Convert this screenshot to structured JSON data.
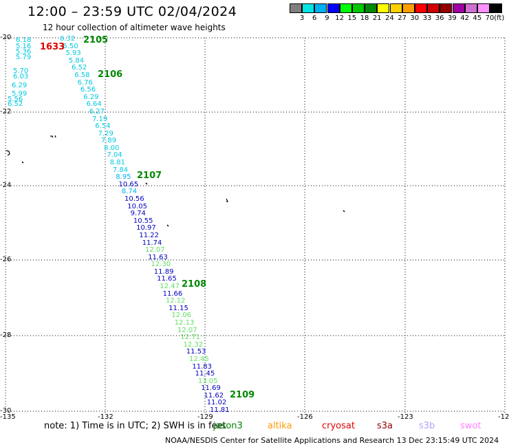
{
  "header": {
    "title": "12:00 – 23:59 UTC 02/04/2024",
    "subtitle": "12 hour collection of altimeter wave heights"
  },
  "legend": {
    "colors": [
      "#7f7f7f",
      "#00e5e5",
      "#00b0f0",
      "#0000ff",
      "#00ff00",
      "#00c800",
      "#008800",
      "#ffff00",
      "#ffd000",
      "#ffa000",
      "#ff0000",
      "#d00000",
      "#900000",
      "#a000a0",
      "#d070d0",
      "#ff90ff",
      "#000000"
    ],
    "ticks": [
      "3",
      "6",
      "9",
      "12",
      "15",
      "18",
      "21",
      "24",
      "27",
      "30",
      "33",
      "36",
      "39",
      "42",
      "45",
      "70"
    ],
    "unit": "(ft)"
  },
  "map": {
    "lat_ticks": [
      "-20",
      "-22",
      "-24",
      "-26",
      "-28",
      "-30"
    ],
    "lon_ticks": [
      "-135",
      "-132",
      "-129",
      "-126",
      "-123",
      "-12"
    ]
  },
  "passes": {
    "left_column": [
      {
        "text": "6.18",
        "color": "#00c8e0"
      },
      {
        "text": "5.16",
        "color": "#00c8e0"
      },
      {
        "text": "5.36",
        "color": "#00c8e0"
      },
      {
        "text": "5.79",
        "color": "#00c8e0"
      },
      {
        "text": "5.70",
        "color": "#00c8e0"
      },
      {
        "text": "6.03",
        "color": "#00c8e0"
      },
      {
        "text": "6.29",
        "color": "#00c8e0"
      },
      {
        "text": "5.99",
        "color": "#00c8e0"
      },
      {
        "text": "5.56",
        "color": "#00c8e0"
      },
      {
        "text": "6.52",
        "color": "#00c8e0"
      }
    ],
    "track": [
      {
        "text": "6.32",
        "color": "#00c8e0"
      },
      {
        "text": "6.50",
        "color": "#00c8e0"
      },
      {
        "text": "5.93",
        "color": "#00c8e0"
      },
      {
        "text": "5.84",
        "color": "#00c8e0"
      },
      {
        "text": "6.52",
        "color": "#00c8e0"
      },
      {
        "text": "6.58",
        "color": "#00c8e0"
      },
      {
        "text": "6.76",
        "color": "#00c8e0"
      },
      {
        "text": "6.56",
        "color": "#00c8e0"
      },
      {
        "text": "6.29",
        "color": "#00c8e0"
      },
      {
        "text": "6.64",
        "color": "#00c8e0"
      },
      {
        "text": "6.27",
        "color": "#00c8e0"
      },
      {
        "text": "7.19",
        "color": "#00c8e0"
      },
      {
        "text": "6.54",
        "color": "#00c8e0"
      },
      {
        "text": "7.29",
        "color": "#00c8e0"
      },
      {
        "text": "7.89",
        "color": "#00c8e0"
      },
      {
        "text": "8.00",
        "color": "#00c8e0"
      },
      {
        "text": "7.04",
        "color": "#00c8e0"
      },
      {
        "text": "8.81",
        "color": "#00c8e0"
      },
      {
        "text": "7.84",
        "color": "#00c8e0"
      },
      {
        "text": "8.95",
        "color": "#00b0f0"
      },
      {
        "text": "10.65",
        "color": "#0000c0"
      },
      {
        "text": "8.74",
        "color": "#00b0f0"
      },
      {
        "text": "10.56",
        "color": "#0000c0"
      },
      {
        "text": "10.05",
        "color": "#0000c0"
      },
      {
        "text": "9.74",
        "color": "#0000c0"
      },
      {
        "text": "10.55",
        "color": "#0000c0"
      },
      {
        "text": "10.97",
        "color": "#0000c0"
      },
      {
        "text": "11.22",
        "color": "#0000c0"
      },
      {
        "text": "11.74",
        "color": "#0000c0"
      },
      {
        "text": "12.07",
        "color": "#60e060"
      },
      {
        "text": "11.63",
        "color": "#0000c0"
      },
      {
        "text": "12.30",
        "color": "#60e060"
      },
      {
        "text": "11.89",
        "color": "#0000c0"
      },
      {
        "text": "11.65",
        "color": "#0000c0"
      },
      {
        "text": "12.47",
        "color": "#60e060"
      },
      {
        "text": "11.66",
        "color": "#0000c0"
      },
      {
        "text": "12.12",
        "color": "#60e060"
      },
      {
        "text": "11.15",
        "color": "#0000c0"
      },
      {
        "text": "12.06",
        "color": "#60e060"
      },
      {
        "text": "12.13",
        "color": "#60e060"
      },
      {
        "text": "12.07",
        "color": "#60e060"
      },
      {
        "text": "12.71",
        "color": "#60e060"
      },
      {
        "text": "12.32",
        "color": "#60e060"
      },
      {
        "text": "11.53",
        "color": "#0000c0"
      },
      {
        "text": "12.45",
        "color": "#60e060"
      },
      {
        "text": "11.83",
        "color": "#0000c0"
      },
      {
        "text": "11.45",
        "color": "#0000c0"
      },
      {
        "text": "13.05",
        "color": "#60e060"
      },
      {
        "text": "11.69",
        "color": "#0000c0"
      },
      {
        "text": "11.62",
        "color": "#0000c0"
      },
      {
        "text": "11.02",
        "color": "#0000c0"
      },
      {
        "text": "11.81",
        "color": "#0000c0"
      }
    ],
    "times": [
      {
        "text": "2105",
        "color": "#008800"
      },
      {
        "text": "2106",
        "color": "#008800"
      },
      {
        "text": "2107",
        "color": "#008800"
      },
      {
        "text": "2108",
        "color": "#008800"
      },
      {
        "text": "2109",
        "color": "#008800"
      }
    ],
    "other_time": {
      "text": "1633",
      "color": "#e00000"
    }
  },
  "footer": {
    "note": "note:  1) Time is in UTC; 2) SWH is in feet",
    "satellites": [
      {
        "name": "jason3",
        "color": "#008800"
      },
      {
        "name": "altika",
        "color": "#ff9900"
      },
      {
        "name": "cryosat",
        "color": "#e00000"
      },
      {
        "name": "s3a",
        "color": "#900000"
      },
      {
        "name": "s3b",
        "color": "#b0a0ff"
      },
      {
        "name": "swot",
        "color": "#ff80ff"
      }
    ],
    "credit": "NOAA/NESDIS Center for Satellite Applications and Research    13 Dec 23:15:49 UTC 2024"
  }
}
